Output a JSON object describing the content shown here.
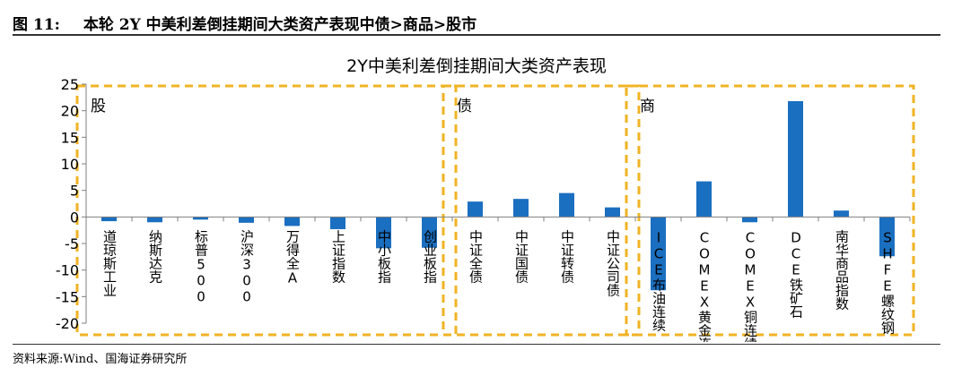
{
  "header": {
    "figure_number": "图 11:",
    "figure_title": "本轮 2Y 中美利差倒挂期间大类资产表现中债>商品>股市"
  },
  "footer": {
    "source": "资料来源:Wind、国海证券研究所"
  },
  "colors": {
    "bar": "#1b6fc0",
    "box": "#f0b323",
    "axis": "#7f7f7f"
  },
  "chart_data": {
    "type": "bar",
    "title": "2Y中美利差倒挂期间大类资产表现",
    "xlabel": "",
    "ylabel": "",
    "ylim": [
      -20,
      25
    ],
    "yticks": [
      -20,
      -15,
      -10,
      -5,
      0,
      5,
      10,
      15,
      20,
      25
    ],
    "grid": false,
    "categories": [
      "道琼斯工业",
      "纳斯达克",
      "标普500",
      "沪深300",
      "万得全A",
      "上证指数",
      "中小板指",
      "创业板指",
      "中证全债",
      "中证国债",
      "中证转债",
      "中证公司债",
      "ICE布油连续",
      "COMEX黄金连续",
      "COMEX铜连续",
      "DCE铁矿石",
      "南华商品指数",
      "SHFE螺纹钢"
    ],
    "values": [
      -0.8,
      -1.0,
      -0.5,
      -1.1,
      -1.7,
      -2.3,
      -5.9,
      -5.8,
      2.9,
      3.4,
      4.5,
      1.8,
      -13.8,
      6.7,
      -1.0,
      21.8,
      1.2,
      -7.4
    ],
    "groups": [
      {
        "label": "股",
        "start": 0,
        "end": 7
      },
      {
        "label": "债",
        "start": 8,
        "end": 11
      },
      {
        "label": "商",
        "start": 12,
        "end": 17
      }
    ]
  }
}
